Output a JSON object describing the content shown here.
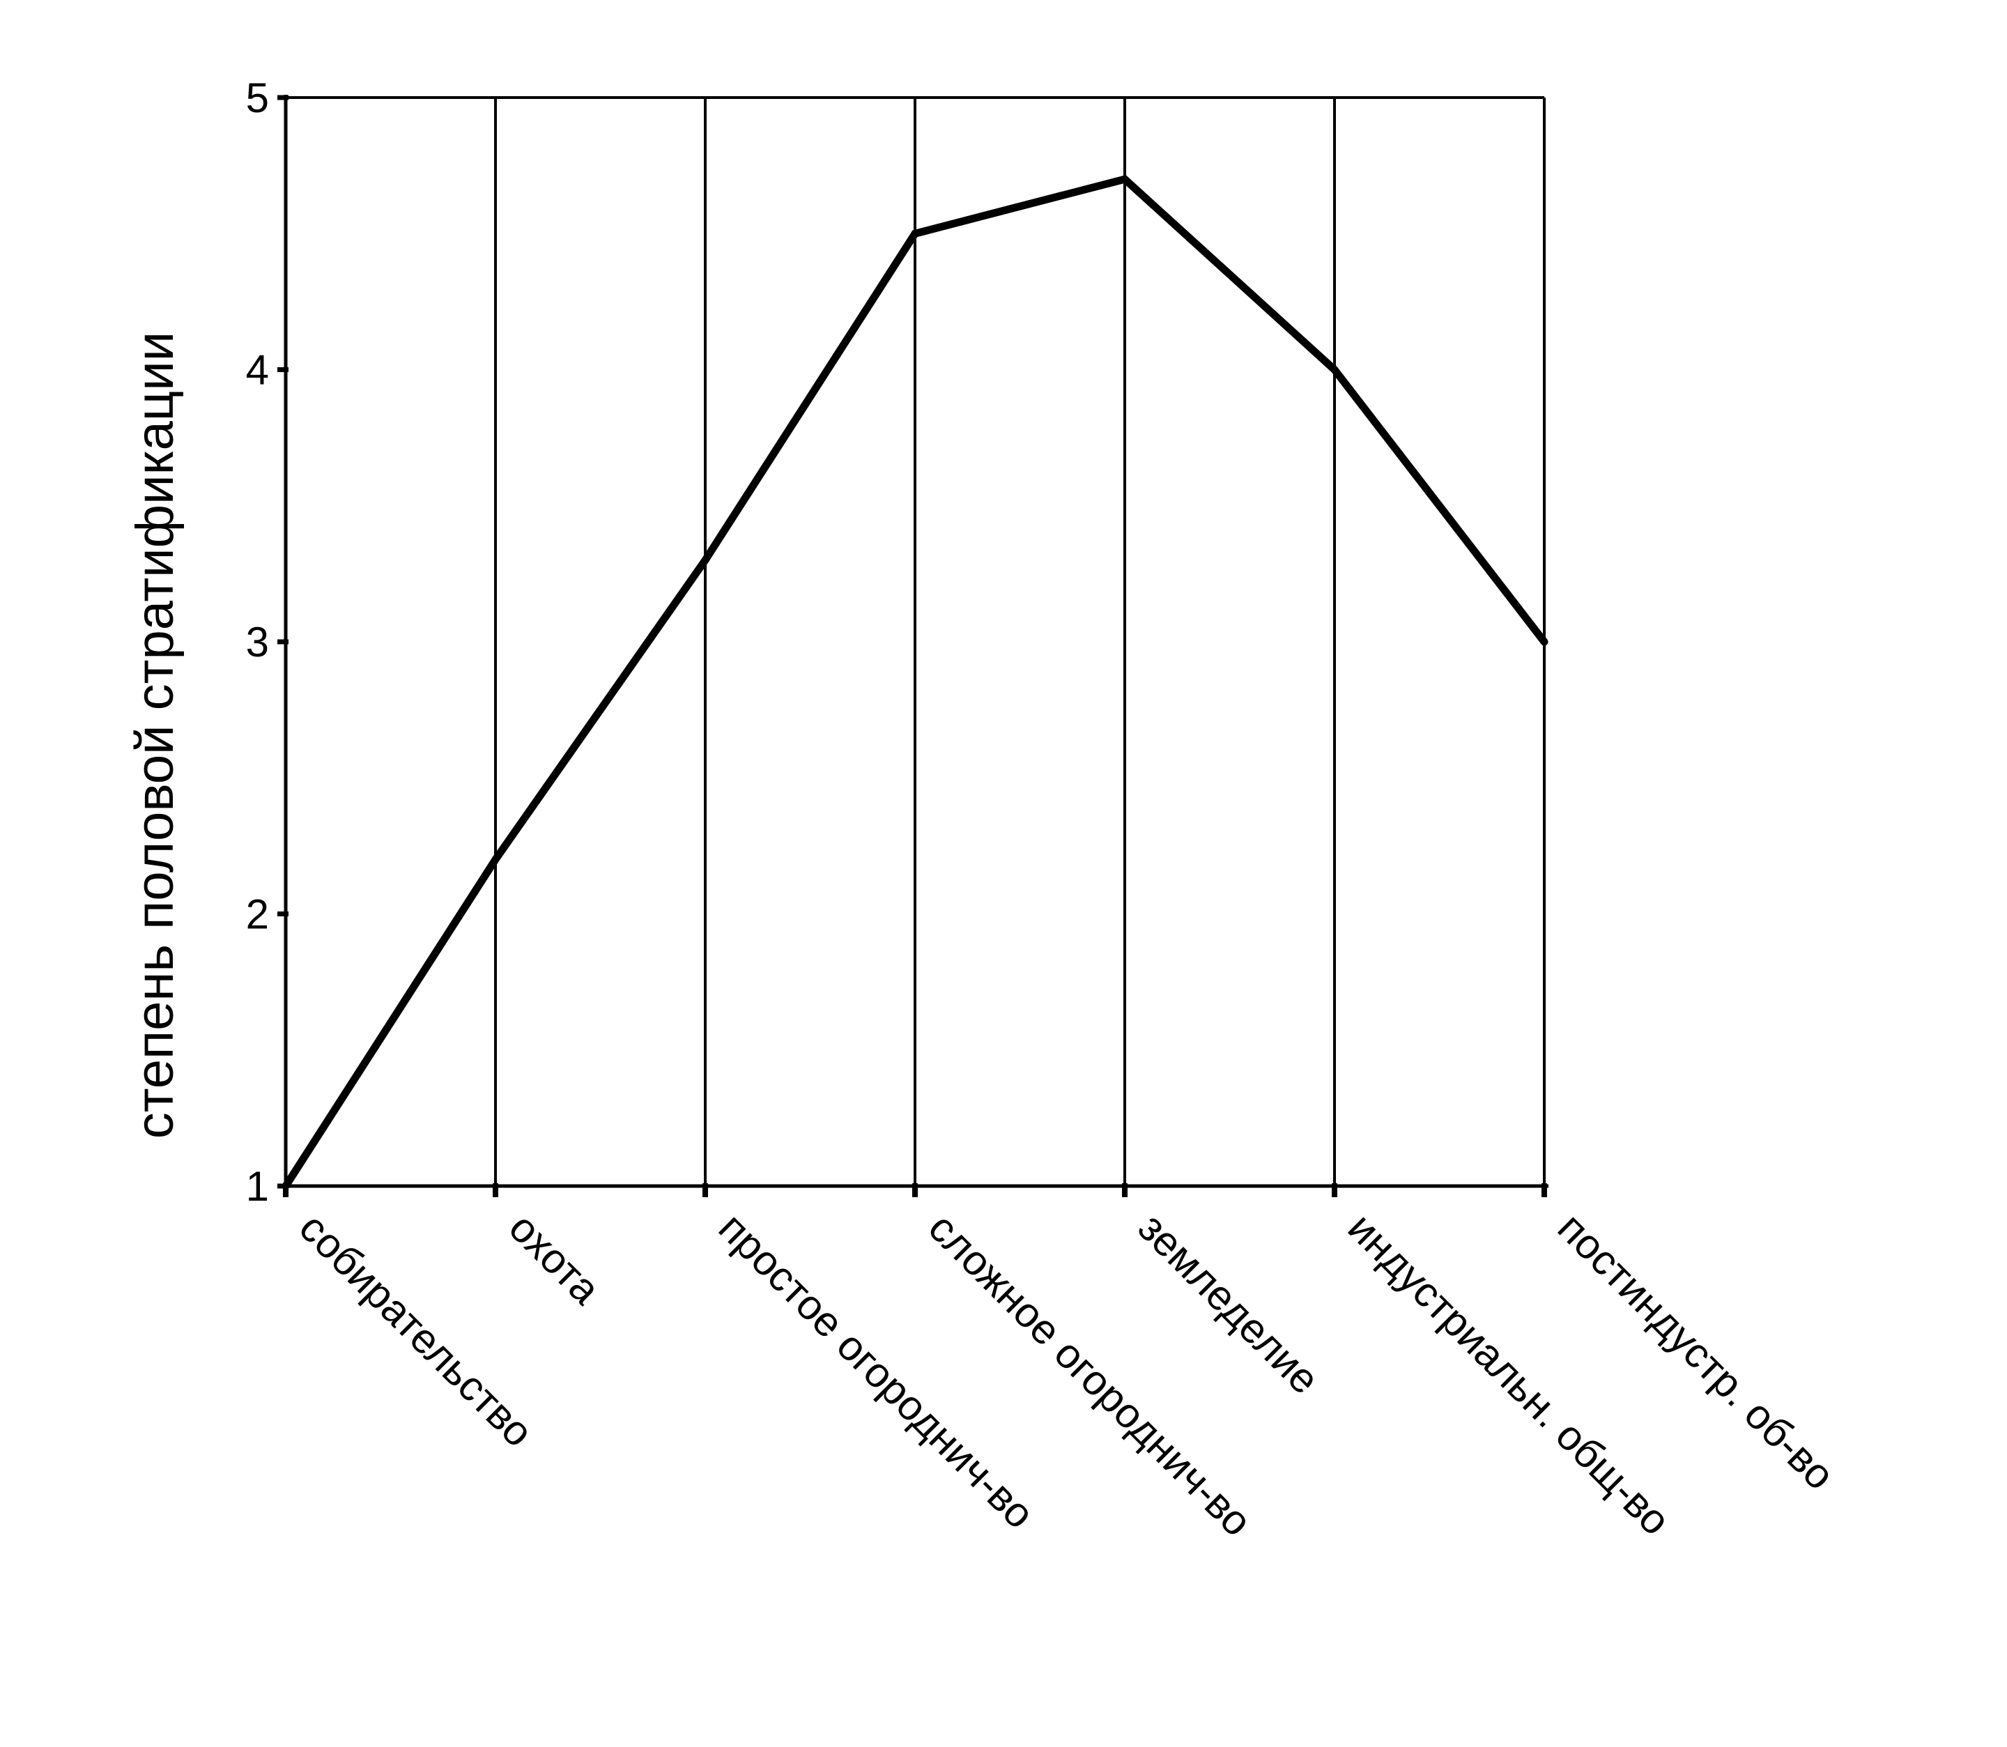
{
  "chart_data": {
    "type": "line",
    "title": "",
    "xlabel": "",
    "ylabel": "степень половой стратификации",
    "categories": [
      "собирательство",
      "охота",
      "простое огороднич-во",
      "сложное огороднич-во",
      "земледелие",
      "индустриальн. общ-во",
      "постиндустр. об-во"
    ],
    "values": [
      1.0,
      2.2,
      3.3,
      4.5,
      4.7,
      4.0,
      3.0
    ],
    "ylim": [
      1,
      5
    ],
    "yticks": [
      1,
      2,
      3,
      4,
      5
    ],
    "grid": "vertical lines at categories",
    "legend": "none",
    "line_color": "#000000"
  }
}
